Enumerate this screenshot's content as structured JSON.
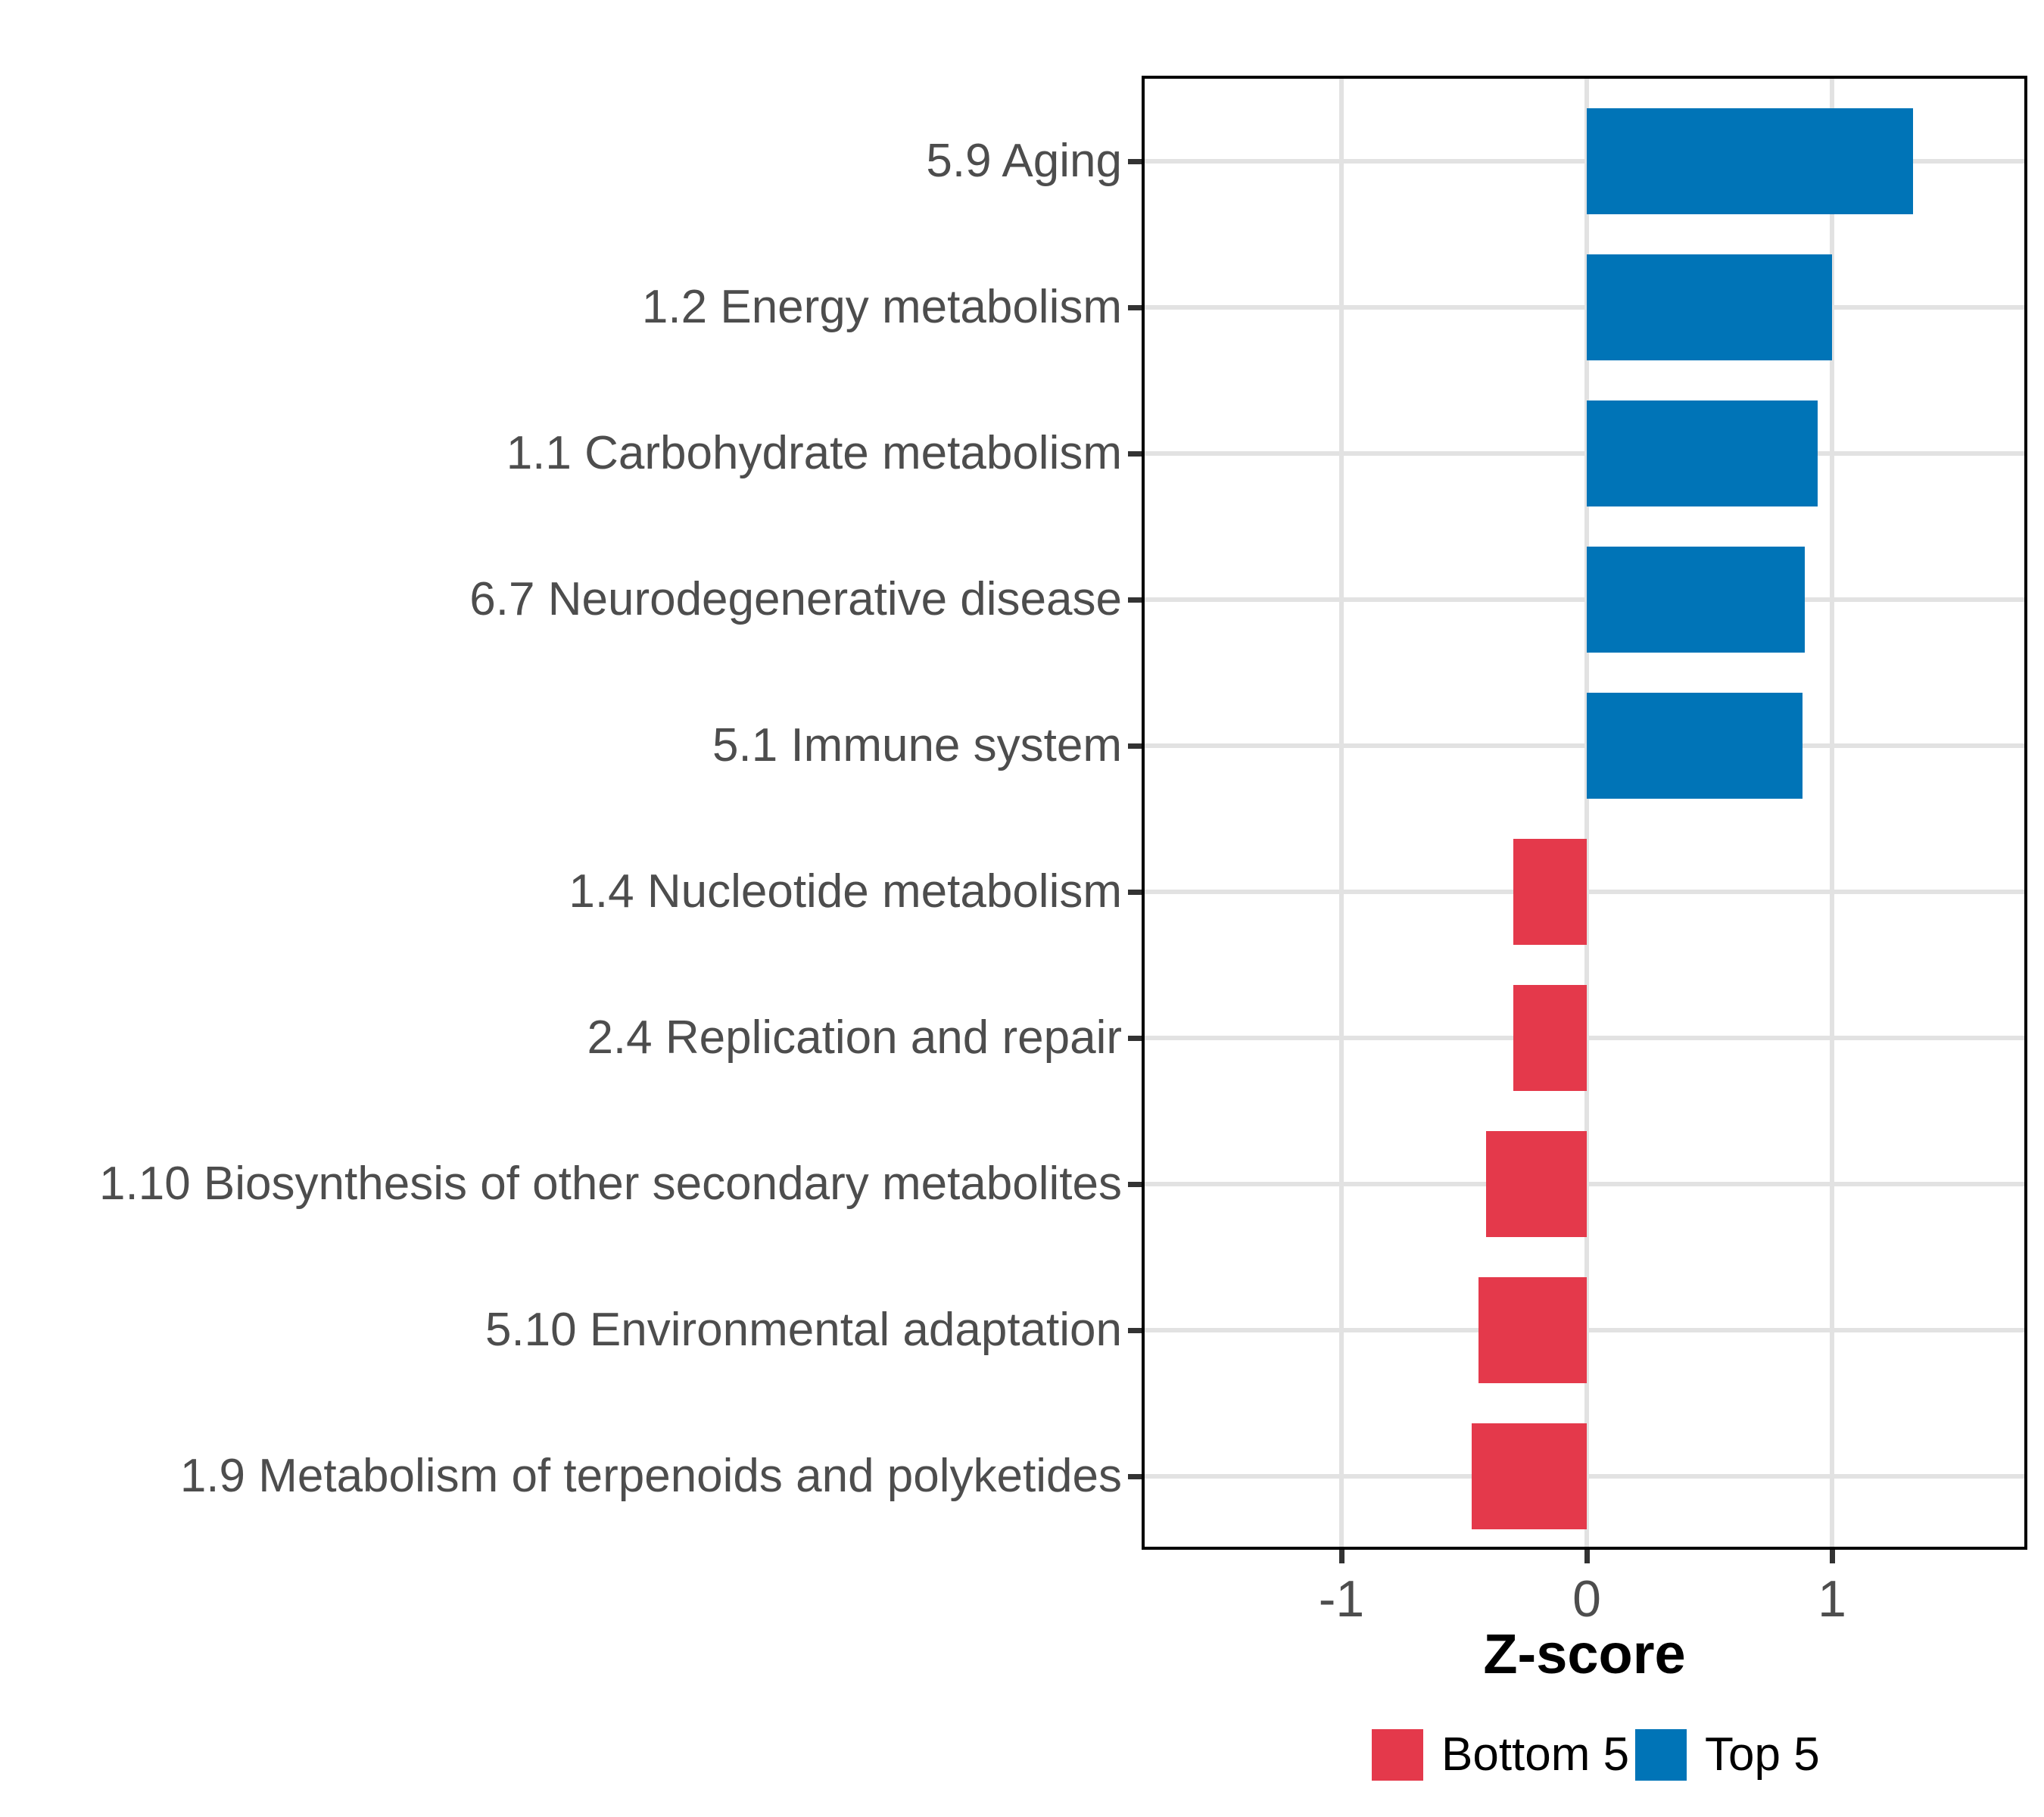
{
  "chart_data": {
    "type": "bar",
    "orientation": "horizontal",
    "title": "",
    "xlabel": "Z-score",
    "ylabel": "",
    "categories": [
      "5.9 Aging",
      "1.2 Energy metabolism",
      "1.1 Carbohydrate metabolism",
      "6.7 Neurodegenerative disease",
      "5.1 Immune system",
      "1.4 Nucleotide metabolism",
      "2.4 Replication and repair",
      "1.10 Biosynthesis of other secondary metabolites",
      "5.10 Environmental adaptation",
      "1.9 Metabolism of terpenoids and polyketides"
    ],
    "values": [
      1.33,
      1.0,
      0.94,
      0.89,
      0.88,
      -0.3,
      -0.3,
      -0.41,
      -0.44,
      -0.47
    ],
    "groups": [
      "Top 5",
      "Top 5",
      "Top 5",
      "Top 5",
      "Top 5",
      "Bottom 5",
      "Bottom 5",
      "Bottom 5",
      "Bottom 5",
      "Bottom 5"
    ],
    "x_tick_labels": [
      "-1",
      "0",
      "1"
    ],
    "x_tick_values": [
      -1,
      0,
      1
    ],
    "xlim": [
      -1.8,
      1.8
    ],
    "grid": "major",
    "legend_position": "bottom",
    "legend": [
      {
        "label": "Bottom 5",
        "color": "#E4394B"
      },
      {
        "label": "Top 5",
        "color": "#0074B7"
      }
    ],
    "colors": {
      "top5": "#0074B7",
      "bottom5": "#E4394B",
      "gridline": "#E2E2E2",
      "axis_text": "#4D4D4D",
      "panel_border": "#000000",
      "tick": "#333333",
      "background": "#FFFFFF"
    }
  }
}
